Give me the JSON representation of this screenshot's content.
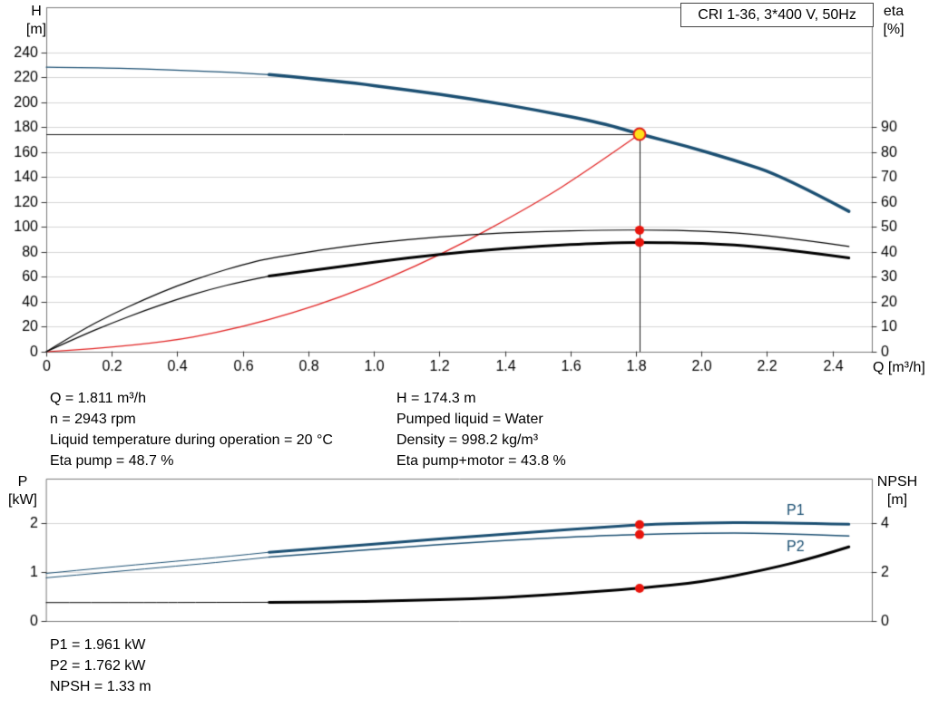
{
  "title_box": {
    "label": "CRI 1-36, 3*400 V, 50Hz"
  },
  "axis_labels": {
    "h": "H",
    "h_unit": "[m]",
    "eta": "eta",
    "eta_unit": "[%]",
    "q": "Q [m³/h]",
    "p": "P",
    "p_unit": "[kW]",
    "npsh": "NPSH",
    "npsh_unit": "[m]"
  },
  "operating_point_info": {
    "left": [
      "Q = 1.811 m³/h",
      "n = 2943 rpm",
      "Liquid temperature during operation = 20 °C",
      "Eta pump = 48.7 %"
    ],
    "right": [
      "H = 174.3 m",
      "Pumped liquid = Water",
      "Density = 998.2 kg/m³",
      "Eta pump+motor = 43.8 %"
    ]
  },
  "power_info": [
    "P1 = 1.961 kW",
    "P2 = 1.762 kW",
    "NPSH = 1.33 m"
  ],
  "colors": {
    "curve_blue": "#1b4f72",
    "system_red": "#e02020",
    "marker_red": "#e8150d",
    "duty_yellow": "#ffe01a"
  },
  "chart_data": [
    {
      "type": "line",
      "title": "CRI 1-36, 3*400 V, 50Hz",
      "xlabel": "Q [m³/h]",
      "ylabel": "H [m]",
      "y2label": "eta [%]",
      "xlim": [
        0,
        2.52
      ],
      "ylim": [
        0,
        276
      ],
      "y2lim": [
        0,
        138
      ],
      "grid": "horizontal",
      "xticks": [
        0,
        0.2,
        0.4,
        0.6,
        0.8,
        1.0,
        1.2,
        1.4,
        1.6,
        1.8,
        2.0,
        2.2,
        2.4
      ],
      "xtick_labels": [
        "0",
        "0.2",
        "0.4",
        "0.6",
        "0.8",
        "1.0",
        "1.2",
        "1.4",
        "1.6",
        "1.8",
        "2.0",
        "2.2",
        "2.4"
      ],
      "yticks": [
        0,
        20,
        40,
        60,
        80,
        100,
        120,
        140,
        160,
        180,
        200,
        220,
        240
      ],
      "ytick_labels": [
        "0",
        "20",
        "40",
        "60",
        "80",
        "100",
        "120",
        "140",
        "160",
        "180",
        "200",
        "220",
        "240"
      ],
      "y2ticks": [
        0,
        10,
        20,
        30,
        40,
        50,
        60,
        70,
        80,
        90
      ],
      "y2tick_labels": [
        "0",
        "10",
        "20",
        "30",
        "40",
        "50",
        "60",
        "70",
        "80",
        "90"
      ],
      "crosshair": {
        "x": 1.811,
        "y": 174.3
      },
      "series": [
        {
          "name": "head-curve-lead",
          "axis": "y",
          "color": "#1b4f72",
          "width": 1.2,
          "points": [
            [
              0,
              228
            ],
            [
              0.15,
              227.6
            ],
            [
              0.3,
              226.6
            ],
            [
              0.45,
              225.1
            ],
            [
              0.58,
              223.5
            ],
            [
              0.68,
              222
            ]
          ]
        },
        {
          "name": "head-curve",
          "axis": "y",
          "color": "#1b4f72",
          "width": 3.5,
          "points": [
            [
              0.68,
              222
            ],
            [
              0.9,
              216.5
            ],
            [
              1.1,
              210
            ],
            [
              1.3,
              202.5
            ],
            [
              1.5,
              193.5
            ],
            [
              1.7,
              183
            ],
            [
              1.811,
              174.3
            ],
            [
              1.95,
              165
            ],
            [
              2.1,
              153.5
            ],
            [
              2.25,
              140.5
            ],
            [
              2.45,
              112.5
            ]
          ]
        },
        {
          "name": "system-curve",
          "axis": "y",
          "color": "#e02020",
          "width": 1.2,
          "points": [
            [
              0,
              0
            ],
            [
              0.3,
              4.8
            ],
            [
              0.6,
              19.1
            ],
            [
              0.9,
              43.1
            ],
            [
              1.2,
              76.6
            ],
            [
              1.5,
              119.7
            ],
            [
              1.65,
              144.8
            ],
            [
              1.811,
              174.3
            ]
          ]
        },
        {
          "name": "eta-pump-curve",
          "axis": "y2",
          "color": "#000000",
          "width": 1.2,
          "points": [
            [
              0,
              0
            ],
            [
              0.1,
              8
            ],
            [
              0.2,
              15
            ],
            [
              0.3,
              21
            ],
            [
              0.4,
              26.5
            ],
            [
              0.5,
              31
            ],
            [
              0.6,
              34.9
            ],
            [
              0.68,
              37.5
            ],
            [
              0.9,
              42
            ],
            [
              1.1,
              45
            ],
            [
              1.3,
              47
            ],
            [
              1.5,
              48.2
            ],
            [
              1.7,
              48.7
            ],
            [
              1.85,
              48.8
            ],
            [
              2.0,
              48.4
            ],
            [
              2.2,
              46.8
            ],
            [
              2.45,
              42.2
            ]
          ]
        },
        {
          "name": "eta-pump-motor-lead",
          "axis": "y2",
          "color": "#000000",
          "width": 1.2,
          "points": [
            [
              0,
              0
            ],
            [
              0.1,
              6
            ],
            [
              0.2,
              11.5
            ],
            [
              0.3,
              16.5
            ],
            [
              0.4,
              21
            ],
            [
              0.5,
              25
            ],
            [
              0.6,
              28.2
            ],
            [
              0.68,
              30.3
            ]
          ]
        },
        {
          "name": "eta-pump-motor-curve",
          "axis": "y2",
          "color": "#000000",
          "width": 3,
          "points": [
            [
              0.68,
              30.3
            ],
            [
              0.9,
              34.2
            ],
            [
              1.1,
              37.6
            ],
            [
              1.3,
              40.3
            ],
            [
              1.5,
              42.3
            ],
            [
              1.7,
              43.6
            ],
            [
              1.811,
              43.8
            ],
            [
              2.0,
              43.5
            ],
            [
              2.2,
              42
            ],
            [
              2.45,
              37.6
            ]
          ]
        }
      ],
      "markers": [
        {
          "name": "eta-pump-point",
          "x": 1.811,
          "y": 48.7,
          "axis": "y2",
          "r": 5,
          "fill": "#e8150d"
        },
        {
          "name": "eta-pump-motor-point",
          "x": 1.811,
          "y": 43.8,
          "axis": "y2",
          "r": 5,
          "fill": "#e8150d"
        },
        {
          "name": "duty-point",
          "x": 1.811,
          "y": 174.3,
          "axis": "y",
          "r": 6.5,
          "fill": "#ffe01a",
          "stroke": "#e0201c"
        }
      ],
      "annotations": []
    },
    {
      "type": "line",
      "ylabel": "P [kW]",
      "y2label": "NPSH [m]",
      "xlim": [
        0,
        2.52
      ],
      "ylim": [
        0,
        2.9
      ],
      "y2lim": [
        0,
        5.8
      ],
      "grid": "horizontal",
      "xticks": [],
      "xtick_labels": [],
      "yticks": [
        0,
        1,
        2
      ],
      "ytick_labels": [
        "0",
        "1",
        "2"
      ],
      "y2ticks": [
        0,
        2,
        4
      ],
      "y2tick_labels": [
        "0",
        "2",
        "4"
      ],
      "series": [
        {
          "name": "p1-curve-lead",
          "axis": "y",
          "color": "#1b4f72",
          "width": 1,
          "points": [
            [
              0,
              0.97
            ],
            [
              0.2,
              1.1
            ],
            [
              0.4,
              1.22
            ],
            [
              0.55,
              1.31
            ],
            [
              0.68,
              1.4
            ]
          ]
        },
        {
          "name": "p1-curve",
          "axis": "y",
          "color": "#1b4f72",
          "width": 3,
          "points": [
            [
              0.68,
              1.4
            ],
            [
              0.9,
              1.51
            ],
            [
              1.1,
              1.62
            ],
            [
              1.3,
              1.72
            ],
            [
              1.5,
              1.82
            ],
            [
              1.7,
              1.91
            ],
            [
              1.811,
              1.961
            ],
            [
              2.0,
              2.0
            ],
            [
              2.2,
              2.01
            ],
            [
              2.45,
              1.97
            ]
          ]
        },
        {
          "name": "p2-curve-lead",
          "axis": "y",
          "color": "#1b4f72",
          "width": 1,
          "points": [
            [
              0,
              0.88
            ],
            [
              0.2,
              1.0
            ],
            [
              0.4,
              1.12
            ],
            [
              0.55,
              1.21
            ],
            [
              0.68,
              1.3
            ]
          ]
        },
        {
          "name": "p2-curve",
          "axis": "y",
          "color": "#1b4f72",
          "width": 1.5,
          "points": [
            [
              0.68,
              1.3
            ],
            [
              0.9,
              1.41
            ],
            [
              1.1,
              1.51
            ],
            [
              1.3,
              1.6
            ],
            [
              1.5,
              1.68
            ],
            [
              1.7,
              1.74
            ],
            [
              1.811,
              1.762
            ],
            [
              2.0,
              1.79
            ],
            [
              2.2,
              1.79
            ],
            [
              2.45,
              1.73
            ]
          ]
        },
        {
          "name": "npsh-curve-lead",
          "axis": "y2",
          "color": "#000000",
          "width": 1,
          "points": [
            [
              0,
              0.75
            ],
            [
              0.3,
              0.75
            ],
            [
              0.5,
              0.755
            ],
            [
              0.68,
              0.76
            ]
          ]
        },
        {
          "name": "npsh-curve",
          "axis": "y2",
          "color": "#000000",
          "width": 3,
          "points": [
            [
              0.68,
              0.76
            ],
            [
              0.9,
              0.78
            ],
            [
              1.1,
              0.83
            ],
            [
              1.3,
              0.9
            ],
            [
              1.5,
              1.03
            ],
            [
              1.7,
              1.22
            ],
            [
              1.811,
              1.33
            ],
            [
              2.0,
              1.58
            ],
            [
              2.2,
              2.1
            ],
            [
              2.35,
              2.6
            ],
            [
              2.45,
              3.02
            ]
          ]
        }
      ],
      "markers": [
        {
          "name": "p1-point",
          "x": 1.811,
          "y": 1.961,
          "axis": "y",
          "r": 5,
          "fill": "#e8150d"
        },
        {
          "name": "p2-point",
          "x": 1.811,
          "y": 1.762,
          "axis": "y",
          "r": 5,
          "fill": "#e8150d"
        },
        {
          "name": "npsh-point",
          "x": 1.811,
          "y": 1.33,
          "axis": "y2",
          "r": 5,
          "fill": "#e8150d"
        }
      ],
      "annotations": [
        {
          "text": "P1",
          "x": 2.26,
          "y": 2.24,
          "axis": "y",
          "color": "#1b4f72"
        },
        {
          "text": "P2",
          "x": 2.26,
          "y": 1.5,
          "axis": "y",
          "color": "#1b4f72"
        }
      ]
    }
  ]
}
